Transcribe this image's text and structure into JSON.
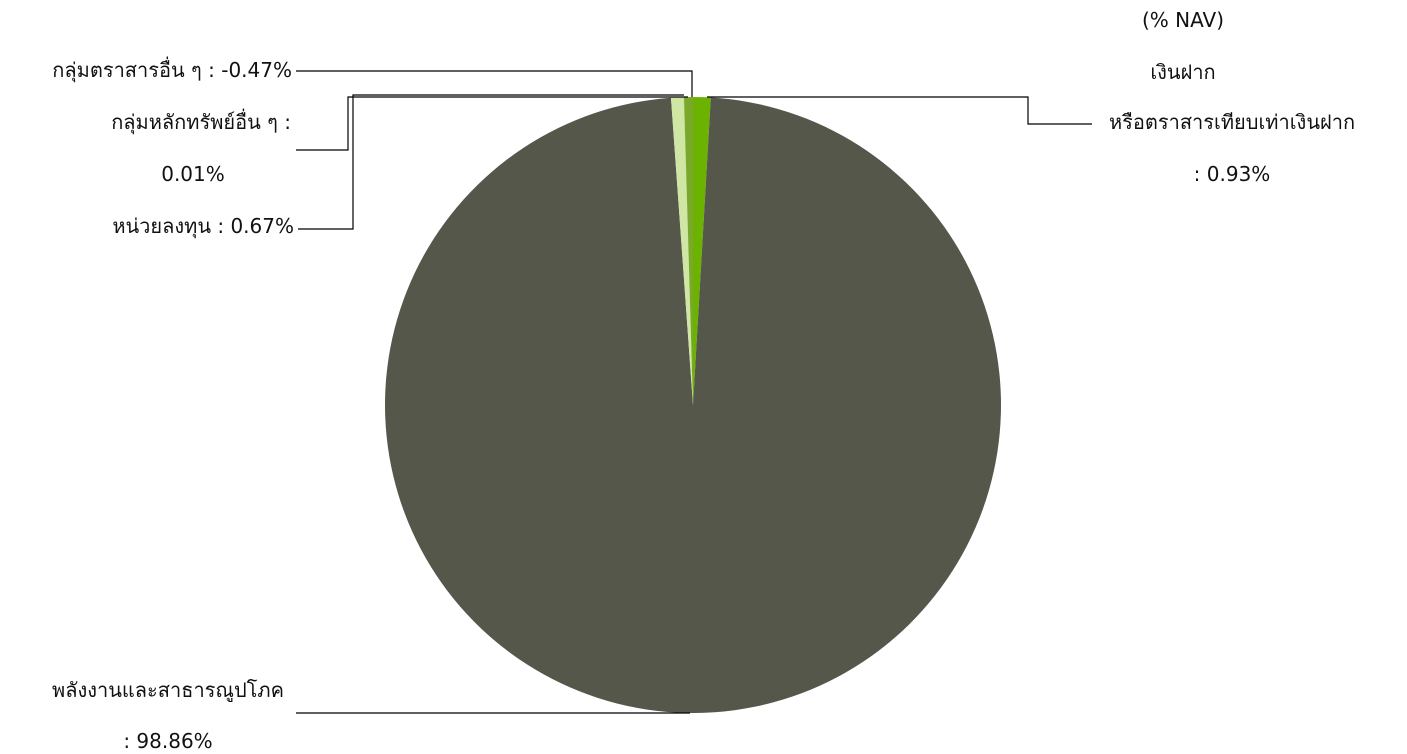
{
  "chart_data": {
    "type": "pie",
    "title": "",
    "unit_note": "(% NAV)",
    "slices": [
      {
        "name": "พลังงานและสาธารณูปโภค",
        "value": 98.86,
        "value_label": ": 98.86%",
        "color": "#55574b"
      },
      {
        "name": "หน่วยลงทุน",
        "value": 0.67,
        "value_label": " : 0.67%",
        "color": "#cfe6a4"
      },
      {
        "name": "กลุ่มหลักทรัพย์อื่น ๆ :",
        "value": 0.01,
        "value_label": "0.01%",
        "color": "#9ccc3c"
      },
      {
        "name": "กลุ่มตราสารอื่น ๆ",
        "value": -0.47,
        "value_label": " : -0.47%",
        "color": "#7aa82a"
      },
      {
        "name": "เงินฝาก",
        "name_line2": "หรือตราสารเทียบเท่าเงินฝาก",
        "value": 0.93,
        "value_label": ": 0.93%",
        "color": "#6bb300"
      }
    ],
    "legend": "none"
  }
}
